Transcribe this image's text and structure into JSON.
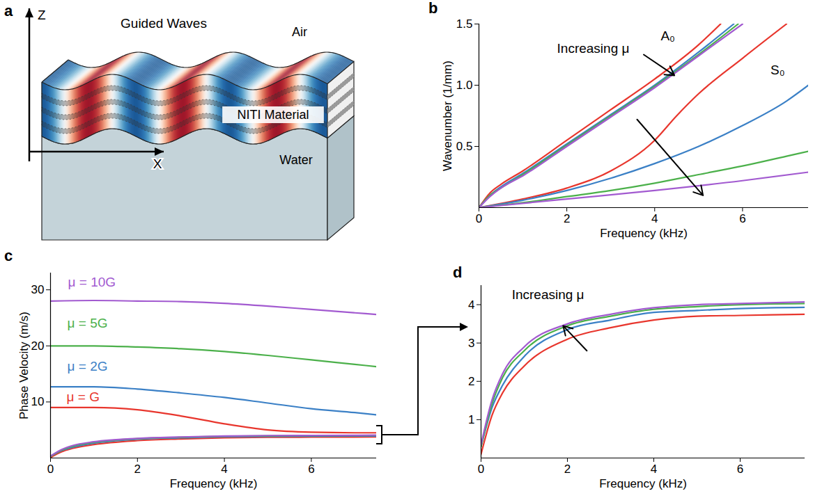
{
  "diagram": {
    "panel_label": "a",
    "title": "Guided Waves",
    "axes": {
      "vertical": "Z",
      "horizontal": "X"
    },
    "layers": {
      "top": "Air",
      "plate": "NITI Material",
      "bottom": "Water"
    }
  },
  "chart_data": [
    {
      "panel_label": "b",
      "type": "line",
      "x_label": "Frequency (kHz)",
      "y_label": "Wavenumber (1/mm)",
      "xlim": [
        0,
        7.5
      ],
      "ylim": [
        0,
        1.5
      ],
      "xticks": [
        0,
        2,
        4,
        6
      ],
      "yticks": [
        0.5,
        {
          "value": 1,
          "label": "1.0"
        },
        1.5
      ],
      "grid": false,
      "series": [
        {
          "color": "#e8362d",
          "x": [
            0,
            0.25,
            0.5,
            1,
            2,
            3,
            4,
            5,
            5.5
          ],
          "values": [
            0,
            0.12,
            0.19,
            0.3,
            0.55,
            0.8,
            1.05,
            1.33,
            1.5
          ]
        },
        {
          "color": "#3b80c6",
          "x": [
            0,
            0.25,
            0.5,
            1,
            2,
            3,
            4,
            5,
            5.8
          ],
          "values": [
            0,
            0.1,
            0.17,
            0.28,
            0.52,
            0.76,
            1.0,
            1.27,
            1.5
          ]
        },
        {
          "color": "#4bb04a",
          "x": [
            0,
            0.25,
            0.5,
            1,
            2,
            3,
            4,
            5,
            5.9
          ],
          "values": [
            0,
            0.1,
            0.16,
            0.27,
            0.51,
            0.75,
            0.99,
            1.25,
            1.5
          ]
        },
        {
          "color": "#a25ad0",
          "x": [
            0,
            0.25,
            0.5,
            1,
            2,
            3,
            4,
            5,
            6
          ],
          "values": [
            0,
            0.09,
            0.16,
            0.26,
            0.5,
            0.74,
            0.98,
            1.24,
            1.5
          ]
        },
        {
          "color": "#e8362d",
          "x": [
            0,
            1,
            2,
            3,
            4,
            4.5,
            5,
            6,
            7
          ],
          "values": [
            0,
            0.07,
            0.16,
            0.3,
            0.55,
            0.75,
            0.93,
            1.22,
            1.5
          ]
        },
        {
          "color": "#3b80c6",
          "x": [
            0,
            1,
            2,
            3,
            4,
            5,
            6,
            7,
            7.5
          ],
          "values": [
            0,
            0.06,
            0.14,
            0.24,
            0.36,
            0.5,
            0.67,
            0.87,
            1.0
          ]
        },
        {
          "color": "#4bb04a",
          "x": [
            0,
            1,
            2,
            3,
            4,
            5,
            6,
            7,
            7.5
          ],
          "values": [
            0,
            0.04,
            0.09,
            0.14,
            0.2,
            0.27,
            0.34,
            0.42,
            0.46
          ]
        },
        {
          "color": "#a25ad0",
          "x": [
            0,
            2,
            4,
            6,
            7.5
          ],
          "values": [
            0,
            0.07,
            0.14,
            0.22,
            0.29
          ]
        }
      ],
      "annotations": [
        {
          "text": "A₀",
          "x": 4.3,
          "y": 1.4
        },
        {
          "text": "S₀",
          "x": 6.8,
          "y": 1.12
        },
        {
          "text": "Increasing μ",
          "x": 2.6,
          "y": 1.3,
          "arrows": [
            [
              3.75,
              1.25,
              4.45,
              1.08
            ],
            [
              3.6,
              0.72,
              5.1,
              0.1
            ]
          ]
        }
      ]
    },
    {
      "panel_label": "c",
      "type": "line",
      "x_label": "Frequency (kHz)",
      "y_label": "Phase Velocity (m/s)",
      "xlim": [
        0,
        7.5
      ],
      "ylim": [
        0,
        33
      ],
      "xticks": [
        0,
        2,
        4,
        6
      ],
      "yticks": [
        10,
        20,
        30
      ],
      "grid": false,
      "series": [
        {
          "color": "#e8362d",
          "x": [
            0,
            0.25,
            0.5,
            1,
            2,
            3,
            4,
            5,
            6,
            7.5
          ],
          "values": [
            0.1,
            1.1,
            1.7,
            2.4,
            3.1,
            3.4,
            3.6,
            3.7,
            3.72,
            3.75
          ]
        },
        {
          "color": "#3b80c6",
          "x": [
            0,
            0.25,
            0.5,
            1,
            2,
            3,
            4,
            5,
            6,
            7.5
          ],
          "values": [
            0.3,
            1.3,
            1.9,
            2.65,
            3.35,
            3.6,
            3.8,
            3.85,
            3.9,
            3.93
          ]
        },
        {
          "color": "#4bb04a",
          "x": [
            0,
            0.25,
            0.5,
            1,
            2,
            3,
            4,
            5,
            6,
            7.5
          ],
          "values": [
            0.3,
            1.4,
            2.1,
            2.8,
            3.45,
            3.7,
            3.88,
            3.95,
            4.0,
            4.03
          ]
        },
        {
          "color": "#a25ad0",
          "x": [
            0,
            0.25,
            0.5,
            1,
            2,
            3,
            4,
            5,
            6,
            7.5
          ],
          "values": [
            0.35,
            1.5,
            2.2,
            2.9,
            3.5,
            3.75,
            3.92,
            4.0,
            4.03,
            4.07
          ]
        },
        {
          "color": "#e8362d",
          "x": [
            0,
            1,
            2,
            3,
            4,
            5,
            6,
            7,
            7.5
          ],
          "values": [
            9,
            9,
            8.6,
            7.5,
            6.1,
            5.0,
            4.6,
            4.5,
            4.5
          ]
        },
        {
          "color": "#3b80c6",
          "x": [
            0,
            1,
            2,
            3,
            4,
            5,
            6,
            7,
            7.5
          ],
          "values": [
            12.7,
            12.7,
            12.3,
            11.6,
            10.8,
            9.8,
            8.8,
            8.1,
            7.7
          ]
        },
        {
          "color": "#4bb04a",
          "x": [
            0,
            1,
            2,
            3,
            4,
            5,
            6,
            7,
            7.5
          ],
          "values": [
            20,
            20,
            19.8,
            19.5,
            19,
            18.3,
            17.5,
            16.7,
            16.3
          ]
        },
        {
          "color": "#a25ad0",
          "x": [
            0,
            1,
            2,
            3,
            4,
            5,
            6,
            7,
            7.5
          ],
          "values": [
            28,
            28.1,
            28,
            27.9,
            27.6,
            27.1,
            26.5,
            25.9,
            25.6
          ]
        }
      ],
      "annotations": [
        {
          "text": "μ = 10G",
          "x": 0.95,
          "y": 31.3,
          "color": "#a25ad0"
        },
        {
          "text": "μ = 5G",
          "x": 0.85,
          "y": 24,
          "color": "#4bb04a"
        },
        {
          "text": "μ = 2G",
          "x": 0.85,
          "y": 16.3,
          "color": "#3b80c6"
        },
        {
          "text": "μ = G",
          "x": 0.75,
          "y": 10.85,
          "color": "#e8362d"
        }
      ]
    },
    {
      "panel_label": "d",
      "type": "line",
      "x_label": "Frequency (kHz)",
      "xlim": [
        0,
        7.5
      ],
      "ylim": [
        0,
        4.5
      ],
      "xticks": [
        0,
        2,
        4,
        6
      ],
      "yticks": [
        1,
        2,
        3,
        4
      ],
      "grid": false,
      "series": [
        {
          "color": "#e8362d",
          "x": [
            0,
            0.25,
            0.5,
            1,
            2,
            3,
            4,
            5,
            6,
            7.5
          ],
          "values": [
            0.1,
            1.1,
            1.7,
            2.4,
            3.1,
            3.4,
            3.6,
            3.7,
            3.72,
            3.75
          ]
        },
        {
          "color": "#3b80c6",
          "x": [
            0,
            0.25,
            0.5,
            1,
            2,
            3,
            4,
            5,
            6,
            7.5
          ],
          "values": [
            0.3,
            1.3,
            1.9,
            2.65,
            3.35,
            3.6,
            3.8,
            3.85,
            3.9,
            3.93
          ]
        },
        {
          "color": "#4bb04a",
          "x": [
            0,
            0.25,
            0.5,
            1,
            2,
            3,
            4,
            5,
            6,
            7.5
          ],
          "values": [
            0.3,
            1.4,
            2.1,
            2.8,
            3.45,
            3.7,
            3.88,
            3.95,
            4.0,
            4.03
          ]
        },
        {
          "color": "#a25ad0",
          "x": [
            0,
            0.25,
            0.5,
            1,
            2,
            3,
            4,
            5,
            6,
            7.5
          ],
          "values": [
            0.35,
            1.5,
            2.2,
            2.9,
            3.5,
            3.75,
            3.92,
            4.0,
            4.03,
            4.07
          ]
        }
      ],
      "annotations": [
        {
          "text": "Increasing μ",
          "x": 1.55,
          "y": 4.25,
          "arrows": [
            [
              2.45,
              2.8,
              1.9,
              3.45
            ]
          ]
        }
      ]
    }
  ]
}
